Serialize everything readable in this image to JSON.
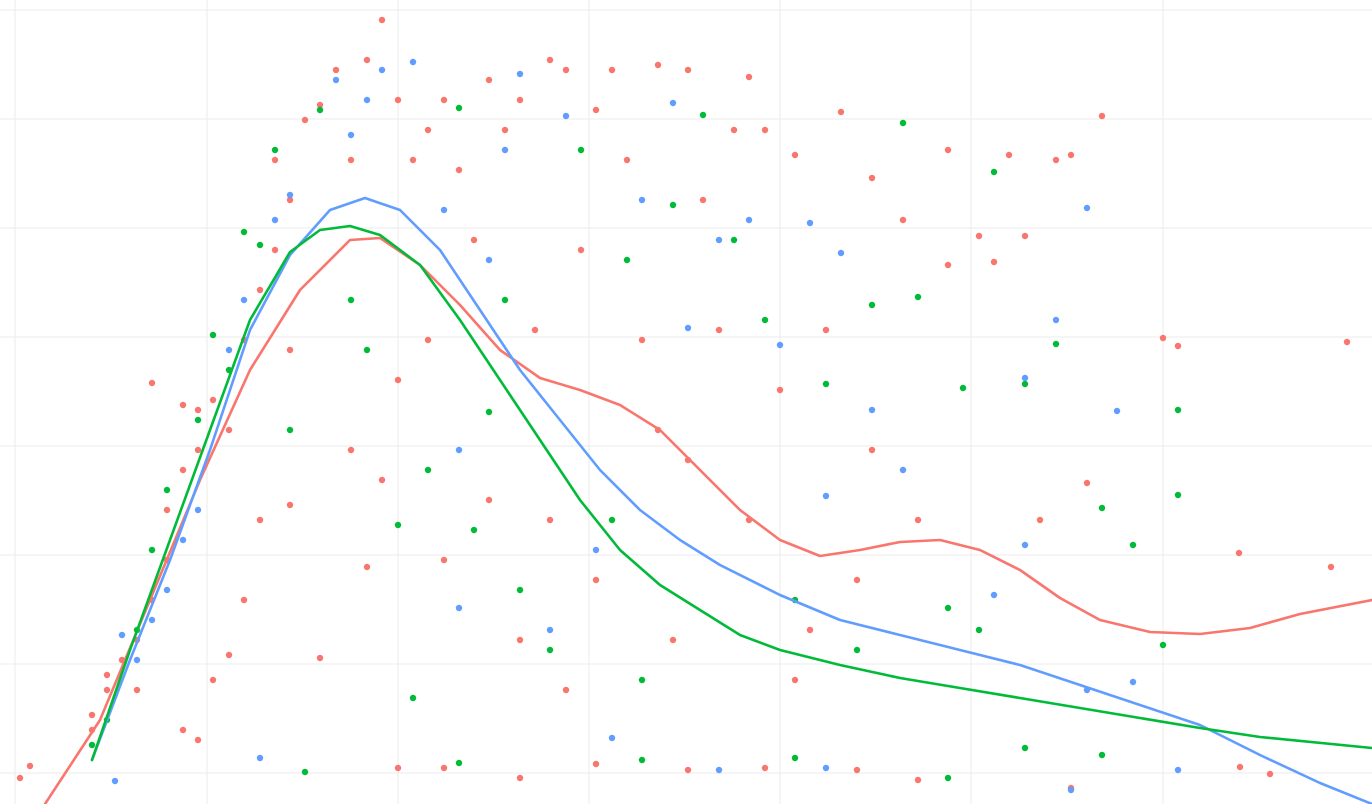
{
  "chart_data": {
    "type": "scatter",
    "xlim": [
      0,
      1372
    ],
    "ylim": [
      0,
      804
    ],
    "xticks": [
      15,
      207,
      398,
      589,
      780,
      971,
      1163
    ],
    "yticks": [
      31,
      140,
      249,
      358,
      467,
      576,
      685,
      794
    ],
    "grid": true,
    "series": [
      {
        "type": "scatter",
        "color": "#F8766D",
        "x": [
          20,
          30,
          92,
          92,
          107,
          107,
          122,
          137,
          137,
          152,
          152,
          167,
          167,
          183,
          183,
          183,
          198,
          198,
          198,
          213,
          213,
          229,
          229,
          244,
          244,
          260,
          260,
          275,
          275,
          290,
          290,
          290,
          305,
          320,
          320,
          336,
          351,
          351,
          367,
          367,
          382,
          382,
          398,
          398,
          413,
          428,
          428,
          444,
          444,
          459,
          474,
          489,
          489,
          505,
          520,
          520,
          535,
          550,
          550,
          566,
          566,
          581,
          596,
          596,
          612,
          627,
          642,
          658,
          658,
          673,
          688,
          688,
          703,
          719,
          734,
          749,
          749,
          765,
          780,
          795,
          795,
          810,
          826,
          841,
          857,
          872,
          872,
          903,
          918,
          948,
          948,
          979,
          994,
          1009,
          1025,
          1040,
          1056,
          1071,
          1087,
          1102,
          1163,
          1178,
          1239,
          1331,
          1347,
          1240,
          1270,
          398,
          444,
          520,
          596,
          688,
          765,
          857,
          918,
          1071
        ],
        "values": [
          26,
          38,
          89,
          74,
          114,
          129,
          144,
          164,
          114,
          204,
          421,
          244,
          294,
          334,
          399,
          74,
          354,
          394,
          64,
          404,
          124,
          374,
          149,
          464,
          204,
          514,
          284,
          554,
          644,
          604,
          454,
          299,
          684,
          699,
          146,
          734,
          644,
          354,
          744,
          237,
          784,
          324,
          704,
          424,
          644,
          674,
          464,
          704,
          244,
          634,
          564,
          724,
          304,
          674,
          704,
          164,
          474,
          744,
          284,
          734,
          114,
          554,
          694,
          224,
          734,
          644,
          464,
          739,
          374,
          164,
          734,
          344,
          604,
          474,
          674,
          727,
          284,
          674,
          414,
          649,
          124,
          174,
          474,
          692,
          224,
          626,
          354,
          584,
          284,
          654,
          539,
          568,
          542,
          649,
          568,
          284,
          644,
          649,
          321,
          688,
          466,
          458,
          251,
          237,
          462,
          37,
          30,
          36,
          36,
          26,
          40,
          34,
          36,
          34,
          24,
          16
        ]
      },
      {
        "type": "scatter",
        "color": "#00BA38",
        "x": [
          92,
          107,
          137,
          152,
          167,
          198,
          213,
          229,
          244,
          260,
          275,
          290,
          305,
          320,
          351,
          367,
          398,
          413,
          428,
          459,
          474,
          489,
          505,
          520,
          550,
          581,
          612,
          627,
          642,
          673,
          703,
          734,
          765,
          795,
          826,
          857,
          872,
          903,
          918,
          948,
          963,
          979,
          994,
          1025,
          1056,
          1102,
          1133,
          1163,
          1178,
          1178,
          1102,
          1025,
          948,
          795,
          642,
          459
        ],
        "values": [
          59,
          84,
          174,
          254,
          314,
          384,
          469,
          434,
          572,
          559,
          654,
          374,
          32,
          694,
          504,
          454,
          279,
          106,
          334,
          696,
          274,
          392,
          504,
          214,
          154,
          654,
          284,
          544,
          124,
          599,
          689,
          564,
          484,
          204,
          420,
          154,
          499,
          681,
          507,
          196,
          416,
          174,
          632,
          420,
          460,
          296,
          259,
          159,
          394,
          309,
          49,
          56,
          26,
          46,
          44,
          41
        ]
      },
      {
        "type": "scatter",
        "color": "#619CFF",
        "x": [
          115,
          122,
          137,
          152,
          167,
          183,
          198,
          229,
          244,
          260,
          275,
          290,
          336,
          351,
          367,
          382,
          413,
          444,
          459,
          459,
          489,
          505,
          520,
          550,
          566,
          596,
          612,
          642,
          673,
          688,
          719,
          749,
          780,
          810,
          826,
          841,
          872,
          903,
          994,
          1025,
          1056,
          1087,
          1117,
          1178,
          1087,
          1133,
          1025,
          719,
          826,
          1071
        ],
        "values": [
          23,
          169,
          144,
          184,
          214,
          264,
          294,
          454,
          504,
          46,
          584,
          609,
          724,
          669,
          704,
          734,
          742,
          594,
          354,
          196,
          544,
          654,
          730,
          174,
          688,
          254,
          66,
          604,
          701,
          476,
          564,
          584,
          459,
          581,
          308,
          551,
          394,
          334,
          209,
          426,
          484,
          596,
          393,
          34,
          114,
          122,
          259,
          34,
          36,
          14
        ]
      },
      {
        "type": "line",
        "color": "#F8766D",
        "x": [
          45,
          100,
          150,
          200,
          250,
          300,
          350,
          380,
          420,
          460,
          500,
          540,
          580,
          620,
          660,
          700,
          740,
          780,
          820,
          860,
          900,
          940,
          980,
          1020,
          1060,
          1100,
          1150,
          1200,
          1250,
          1300,
          1372
        ],
        "values": [
          0,
          84,
          204,
          324,
          434,
          514,
          564,
          566,
          539,
          499,
          454,
          426,
          414,
          399,
          374,
          334,
          294,
          264,
          248,
          254,
          262,
          264,
          254,
          234,
          206,
          184,
          172,
          170,
          176,
          190,
          204
        ]
      },
      {
        "type": "line",
        "color": "#619CFF",
        "x": [
          92,
          130,
          170,
          210,
          250,
          290,
          330,
          365,
          400,
          440,
          480,
          520,
          560,
          600,
          640,
          680,
          720,
          780,
          840,
          900,
          960,
          1020,
          1080,
          1140,
          1200,
          1260,
          1320,
          1372
        ],
        "values": [
          44,
          144,
          244,
          354,
          474,
          549,
          594,
          606,
          594,
          554,
          494,
          434,
          384,
          334,
          294,
          264,
          239,
          209,
          184,
          169,
          154,
          139,
          119,
          99,
          79,
          49,
          21,
          0
        ]
      },
      {
        "type": "line",
        "color": "#00BA38",
        "x": [
          92,
          130,
          170,
          210,
          250,
          290,
          320,
          350,
          380,
          420,
          460,
          500,
          540,
          580,
          620,
          660,
          700,
          740,
          780,
          840,
          900,
          960,
          1020,
          1080,
          1140,
          1200,
          1260,
          1372
        ],
        "values": [
          44,
          154,
          264,
          374,
          484,
          552,
          574,
          578,
          569,
          539,
          484,
          424,
          364,
          304,
          254,
          219,
          194,
          169,
          154,
          139,
          126,
          116,
          106,
          96,
          86,
          76,
          67,
          56
        ]
      }
    ]
  }
}
